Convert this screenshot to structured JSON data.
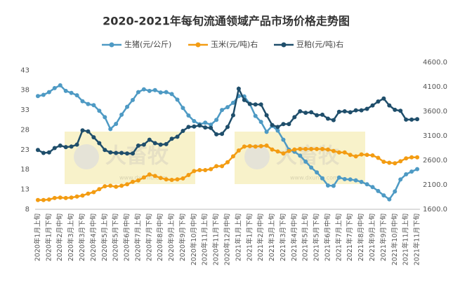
{
  "chart_data": {
    "type": "line",
    "title": "2020-2021年每旬流通领域产品市场价格走势图",
    "watermark": {
      "text": "大畜牧",
      "url": "www.dxumu.com"
    },
    "categories": [
      "2020年1月上旬",
      null,
      "2020年1月下旬",
      null,
      "2020年2月中旬",
      null,
      "2020年3月上旬",
      null,
      "2020年3月下旬",
      null,
      "2020年4月中旬",
      null,
      "2020年5月上旬",
      null,
      "2020年5月下旬",
      null,
      "2020年6月中旬",
      null,
      "2020年7月上旬",
      null,
      "2020年7月下旬",
      null,
      "2020年8月中旬",
      null,
      "2020年9月上旬",
      null,
      "2020年9月下旬",
      null,
      "2020年10月中旬",
      null,
      "2020年11月上旬",
      null,
      "2020年11月下旬",
      null,
      "2020年12月中旬",
      null,
      "2021年1月上旬",
      null,
      "2021年1月下旬",
      null,
      "2021年2月中旬",
      null,
      "2021年3月上旬",
      null,
      "2021年3月下旬",
      null,
      "2021年4月中旬",
      null,
      "2021年5月上旬",
      null,
      "2021年5月下旬",
      null,
      "2021年6月中旬",
      null,
      "2021年7月上旬",
      null,
      "2021年7月下旬",
      null,
      "2021年8月中旬",
      null,
      "2021年9月上旬",
      null,
      "2021年9月下旬",
      null,
      "2021年10月中旬",
      null,
      "2021年11月上旬",
      null,
      "2021年11月下旬"
    ],
    "series": [
      {
        "name": "生猪(元/公斤)",
        "color": "#4e9ac4",
        "axis": "y",
        "values": [
          36.5,
          36.8,
          37.5,
          38.5,
          39.2,
          37.8,
          37.3,
          36.7,
          35.2,
          34.5,
          34.2,
          32.8,
          31.2,
          28.2,
          29.5,
          31.8,
          33.8,
          35.5,
          37.5,
          38.2,
          37.8,
          38.0,
          37.4,
          37.5,
          37.0,
          35.6,
          33.5,
          31.6,
          30.2,
          29.4,
          29.8,
          29.3,
          30.5,
          33.0,
          33.7,
          34.8,
          36.5,
          36.4,
          34.5,
          31.5,
          30.0,
          27.5,
          29.0,
          27.8,
          25.5,
          23.0,
          22.5,
          21.5,
          20.0,
          18.5,
          17.3,
          15.8,
          14.0,
          13.9,
          16.0,
          15.6,
          15.5,
          15.3,
          14.9,
          14.3,
          13.6,
          12.6,
          11.5,
          10.5,
          12.5,
          15.5,
          16.8,
          17.5,
          18.1
        ]
      },
      {
        "name": "玉米(元/吨)右",
        "color": "#f39c12",
        "axis": "y2",
        "values": [
          1790,
          1790,
          1800,
          1830,
          1840,
          1830,
          1840,
          1860,
          1880,
          1920,
          1950,
          2010,
          2070,
          2080,
          2060,
          2080,
          2110,
          2160,
          2190,
          2250,
          2310,
          2280,
          2240,
          2210,
          2200,
          2210,
          2230,
          2300,
          2380,
          2400,
          2400,
          2420,
          2480,
          2480,
          2560,
          2680,
          2800,
          2880,
          2890,
          2880,
          2890,
          2900,
          2820,
          2780,
          2740,
          2790,
          2820,
          2830,
          2830,
          2830,
          2830,
          2830,
          2820,
          2790,
          2760,
          2760,
          2710,
          2680,
          2720,
          2710,
          2700,
          2650,
          2570,
          2550,
          2540,
          2580,
          2640,
          2660,
          2660
        ]
      },
      {
        "name": "豆粕(元/吨)右",
        "color": "#1f4e6b",
        "axis": "y2",
        "values": [
          2810,
          2750,
          2760,
          2850,
          2900,
          2870,
          2880,
          2920,
          3210,
          3190,
          3070,
          2950,
          2810,
          2760,
          2750,
          2750,
          2740,
          2740,
          2900,
          2920,
          3020,
          2950,
          2920,
          2930,
          3040,
          3080,
          3200,
          3280,
          3290,
          3310,
          3270,
          3260,
          3130,
          3140,
          3280,
          3520,
          4060,
          3830,
          3750,
          3740,
          3740,
          3520,
          3320,
          3280,
          3340,
          3340,
          3480,
          3600,
          3570,
          3580,
          3520,
          3530,
          3450,
          3420,
          3590,
          3600,
          3580,
          3620,
          3620,
          3650,
          3720,
          3800,
          3860,
          3720,
          3630,
          3610,
          3430,
          3430,
          3440
        ]
      }
    ],
    "ylim": [
      8,
      45
    ],
    "yticks": [
      8,
      13,
      18,
      23,
      28,
      33,
      38,
      43
    ],
    "y2lim": [
      1600,
      4600
    ],
    "y2ticks": [
      {
        "value": 1600,
        "label": "1600.0"
      },
      {
        "value": 2100,
        "label": "2100.0"
      },
      {
        "value": 2600,
        "label": "2600.0"
      },
      {
        "value": 3100,
        "label": "3100.0"
      },
      {
        "value": 3600,
        "label": "3600.0"
      },
      {
        "value": 4100,
        "label": "4100.0"
      },
      {
        "value": 4600,
        "label": "4600.0"
      }
    ],
    "legend": "top",
    "grid": false
  }
}
